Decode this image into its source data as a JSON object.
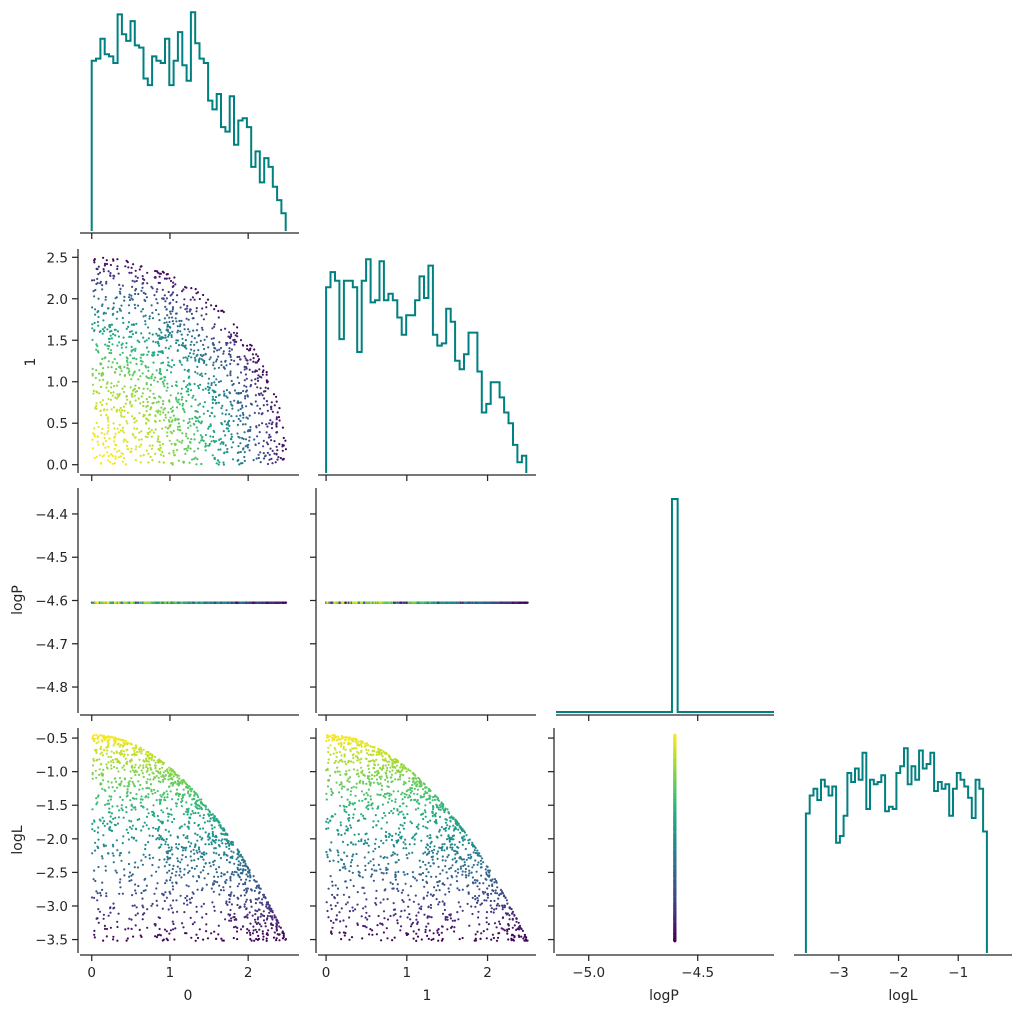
{
  "chart_data": {
    "type": "scatter",
    "variables": [
      "0",
      "1",
      "logP",
      "logL"
    ],
    "layout": "corner",
    "diagonal": "step-histogram",
    "offdiagonal": "scatter",
    "hist_color": "#008080",
    "colormap": "viridis",
    "color_by": "logL",
    "grid": false,
    "ranges": {
      "0": [
        -0.15,
        2.65
      ],
      "1": [
        -0.1,
        2.6
      ],
      "logP": [
        -4.86,
        -4.34
      ],
      "logL": [
        -3.7,
        -0.35
      ],
      "logP_diag": [
        -5.15,
        -4.15
      ],
      "logL_diag": [
        -3.75,
        -0.1
      ]
    },
    "ticks": {
      "0": {
        "values": [
          0,
          1,
          2
        ],
        "labels": [
          "0",
          "1",
          "2"
        ]
      },
      "1": {
        "values": [
          0.0,
          0.5,
          1.0,
          1.5,
          2.0,
          2.5
        ],
        "labels": [
          "0.0",
          "0.5",
          "1.0",
          "1.5",
          "2.0",
          "2.5"
        ]
      },
      "1x": {
        "values": [
          0,
          1,
          2
        ],
        "labels": [
          "0",
          "1",
          "2"
        ]
      },
      "logP": {
        "values": [
          -4.4,
          -4.5,
          -4.6,
          -4.7,
          -4.8
        ],
        "labels": [
          "−4.4",
          "−4.5",
          "−4.6",
          "−4.7",
          "−4.8"
        ]
      },
      "logPx": {
        "values": [
          -5.0,
          -4.5
        ],
        "labels": [
          "−5.0",
          "−4.5"
        ]
      },
      "logL": {
        "values": [
          -0.5,
          -1.0,
          -1.5,
          -2.0,
          -2.5,
          -3.0,
          -3.5
        ],
        "labels": [
          "−0.5",
          "−1.0",
          "−1.5",
          "−2.0",
          "−2.5",
          "−3.0",
          "−3.5"
        ]
      },
      "logLx": {
        "values": [
          -3,
          -2,
          -1
        ],
        "labels": [
          "−3",
          "−2",
          "−1"
        ]
      }
    },
    "axis_labels": {
      "x": [
        "0",
        "1",
        "logP",
        "logL"
      ],
      "y": [
        "1",
        "logP",
        "logL"
      ]
    },
    "logP_value": -4.605,
    "hist_0": {
      "range": [
        0,
        2.48
      ],
      "counts": [
        0.77,
        0.78,
        0.87,
        0.8,
        0.79,
        0.76,
        0.98,
        0.89,
        0.86,
        0.95,
        0.84,
        0.83,
        0.69,
        0.66,
        0.79,
        0.77,
        0.76,
        0.87,
        0.66,
        0.77,
        0.9,
        0.75,
        0.68,
        0.99,
        0.85,
        0.78,
        0.76,
        0.59,
        0.55,
        0.62,
        0.47,
        0.45,
        0.61,
        0.39,
        0.5,
        0.51,
        0.47,
        0.29,
        0.36,
        0.22,
        0.33,
        0.29,
        0.2,
        0.14,
        0.08
      ]
    },
    "hist_1": {
      "range": [
        0,
        2.48
      ],
      "counts": [
        0.86,
        0.93,
        0.89,
        0.62,
        0.89,
        0.89,
        0.86,
        0.56,
        0.89,
        0.99,
        0.79,
        0.8,
        0.98,
        0.8,
        0.83,
        0.8,
        0.72,
        0.64,
        0.73,
        0.73,
        0.8,
        0.91,
        0.81,
        0.96,
        0.64,
        0.59,
        0.6,
        0.76,
        0.7,
        0.52,
        0.48,
        0.55,
        0.65,
        0.65,
        0.47,
        0.28,
        0.32,
        0.42,
        0.42,
        0.35,
        0.28,
        0.23,
        0.13,
        0.05,
        0.08
      ]
    },
    "hist_logP": {
      "bin": [
        -4.618,
        -4.592
      ],
      "count": 1.0
    },
    "hist_logL": {
      "range": [
        -3.55,
        -0.52
      ],
      "counts": [
        0.62,
        0.7,
        0.73,
        0.68,
        0.77,
        0.74,
        0.7,
        0.74,
        0.49,
        0.52,
        0.61,
        0.8,
        0.76,
        0.82,
        0.77,
        0.89,
        0.64,
        0.77,
        0.75,
        0.76,
        0.79,
        0.63,
        0.65,
        0.64,
        0.8,
        0.83,
        0.91,
        0.75,
        0.83,
        0.77,
        0.9,
        0.82,
        0.84,
        0.89,
        0.72,
        0.76,
        0.73,
        0.75,
        0.61,
        0.73,
        0.8,
        0.77,
        0.74,
        0.69,
        0.6,
        0.77,
        0.73,
        0.54
      ]
    },
    "sample_support": {
      "description_values": {
        "max_radius": 2.5,
        "logL_max": -0.45,
        "logL_min": -3.52
      },
      "count": 1500
    }
  }
}
